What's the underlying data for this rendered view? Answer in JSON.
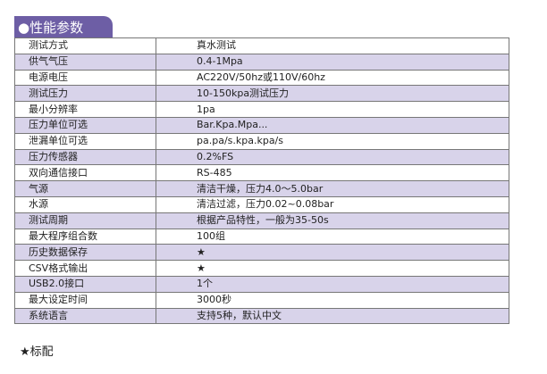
{
  "section_title": "●性能参数",
  "rows": [
    {
      "k": "测试方式",
      "v": "真水测试"
    },
    {
      "k": "供气气压",
      "v": "0.4-1Mpa"
    },
    {
      "k": "电源电压",
      "v": "AC220V/50hz或110V/60hz"
    },
    {
      "k": "测试压力",
      "v": "10-150kpa测试压力"
    },
    {
      "k": "最小分辨率",
      "v": "1pa"
    },
    {
      "k": "压力单位可选",
      "v": "Bar.Kpa.Mpa..."
    },
    {
      "k": "泄漏单位可选",
      "v": "pa.pa/s.kpa.kpa/s"
    },
    {
      "k": "压力传感器",
      "v": "0.2%FS"
    },
    {
      "k": "双向通信接口",
      "v": "RS-485"
    },
    {
      "k": "气源",
      "v": "清洁干燥，压力4.0～5.0bar"
    },
    {
      "k": "水源",
      "v": "清洁过滤，压力0.02~0.08bar"
    },
    {
      "k": "测试周期",
      "v": "根据产品特性，一般为35-50s"
    },
    {
      "k": "最大程序组合数",
      "v": "100组"
    },
    {
      "k": "历史数据保存",
      "v": "★"
    },
    {
      "k": "CSV格式输出",
      "v": "★"
    },
    {
      "k": "USB2.0接口",
      "v": "1个"
    },
    {
      "k": "最大设定时间",
      "v": "3000秒"
    },
    {
      "k": "系统语言",
      "v": "支持5种，默认中文"
    }
  ],
  "footnote": "★标配",
  "colors": {
    "accent": "#6d5ea5",
    "stripe": "#d8d3ea"
  }
}
